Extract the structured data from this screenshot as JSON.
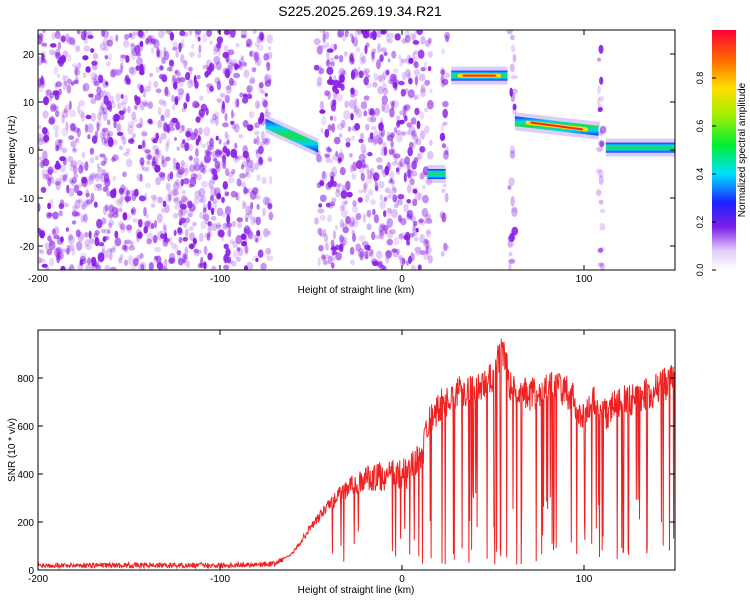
{
  "title": "S225.2025.269.19.34.R21",
  "colors": {
    "snr_line": "#ee2222",
    "axis": "#000000",
    "noise": "#8a1ee6"
  },
  "chart_data": [
    {
      "type": "heatmap",
      "xlabel": "Height of straight line (km)",
      "ylabel": "Frequency (Hz)",
      "xlim": [
        -200,
        150
      ],
      "ylim": [
        -25,
        25
      ],
      "xticks": [
        -200,
        -100,
        0,
        100
      ],
      "yticks": [
        -20,
        -10,
        0,
        10,
        20
      ],
      "colorbar": {
        "label": "Normalized spectral amplitude",
        "range": [
          0,
          1
        ],
        "ticks": [
          0.0,
          0.2,
          0.4,
          0.6,
          0.8
        ]
      },
      "noise_segments_km": [
        [
          -200,
          -72
        ],
        [
          -47,
          16
        ],
        [
          22,
          25
        ],
        [
          59,
          62
        ],
        [
          108,
          111
        ]
      ],
      "signal_segments": [
        {
          "x": [
            -75,
            -46
          ],
          "freq_start": 5.5,
          "freq_end": 0.5
        },
        {
          "x": [
            14,
            24
          ],
          "freq_start": -5,
          "freq_end": -5
        },
        {
          "x": [
            27,
            58
          ],
          "freq_start": 15.5,
          "freq_end": 15.5
        },
        {
          "x": [
            62,
            108
          ],
          "freq_start": 6,
          "freq_end": 4
        },
        {
          "x": [
            112,
            150
          ],
          "freq_start": 0.5,
          "freq_end": 0.5
        }
      ]
    },
    {
      "type": "line",
      "xlabel": "Height of straight line (km)",
      "ylabel": "SNR (10 * v/v)",
      "xlim": [
        -200,
        150
      ],
      "ylim": [
        0,
        1000
      ],
      "xticks": [
        -200,
        -100,
        0,
        100
      ],
      "yticks": [
        0,
        200,
        400,
        600,
        800
      ],
      "series": [
        {
          "name": "SNR",
          "x": [
            -200,
            -150,
            -100,
            -70,
            -60,
            -50,
            -40,
            -30,
            -20,
            -10,
            0,
            10,
            15,
            20,
            30,
            40,
            50,
            55,
            60,
            70,
            80,
            90,
            95,
            100,
            105,
            110,
            120,
            130,
            140,
            150
          ],
          "values": [
            20,
            20,
            20,
            25,
            70,
            180,
            270,
            340,
            380,
            390,
            390,
            460,
            610,
            680,
            740,
            760,
            800,
            930,
            750,
            730,
            760,
            750,
            700,
            620,
            710,
            640,
            700,
            720,
            750,
            800
          ]
        }
      ]
    }
  ]
}
